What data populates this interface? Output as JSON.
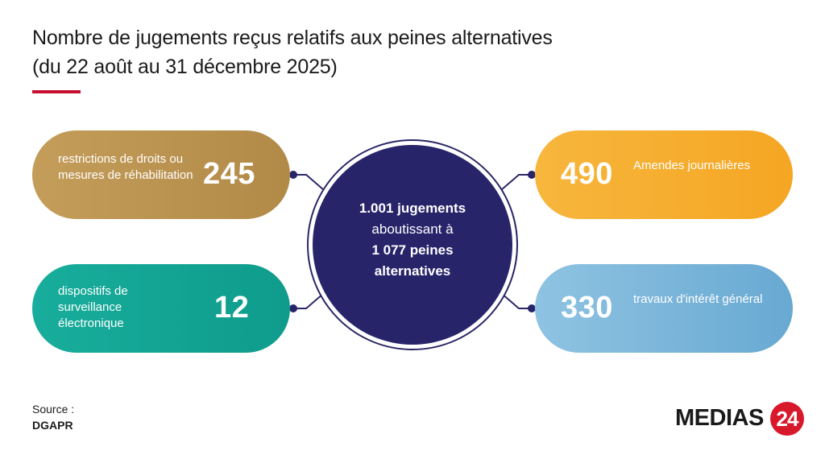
{
  "header": {
    "title": "Nombre de jugements reçus relatifs aux peines alternatives",
    "subtitle": "(du 22 août au 31 décembre 2025)"
  },
  "center": {
    "line1": "1.001 jugements",
    "line2": "aboutissant à",
    "line3": "1 077 peines",
    "line4": "alternatives"
  },
  "footer": {
    "source_label": "Source :",
    "source_value": "DGAPR"
  },
  "logo": {
    "word": "MEDIAS",
    "badge": "24"
  },
  "colors": {
    "title_accent": "#c8102e",
    "restrictions": "#b89150",
    "surveillance": "#13a594",
    "amendes": "#f5a623",
    "travaux": "#7bb6da",
    "center": "#27246a",
    "logo_red": "#d7192b"
  },
  "chart_data": {
    "type": "table",
    "title": "Nombre de jugements reçus relatifs aux peines alternatives",
    "subtitle": "(du 22 août au 31 décembre 2025)",
    "total_judgments": "1.001",
    "total_penalties": "1 077",
    "categories": [
      "restrictions de droits ou mesures de réhabilitation",
      "dispositifs de surveillance électronique",
      "Amendes journalières",
      "travaux d'intérêt général"
    ],
    "values": [
      245,
      12,
      490,
      330
    ],
    "items": [
      {
        "key": "restrictions",
        "label": "restrictions de droits ou mesures de réhabilitation",
        "value": 245
      },
      {
        "key": "surveillance",
        "label": "dispositifs de surveillance électronique",
        "value": 12
      },
      {
        "key": "amendes",
        "label": "Amendes journalières",
        "value": 490
      },
      {
        "key": "travaux",
        "label": "travaux d'intérêt général",
        "value": 330
      }
    ]
  }
}
